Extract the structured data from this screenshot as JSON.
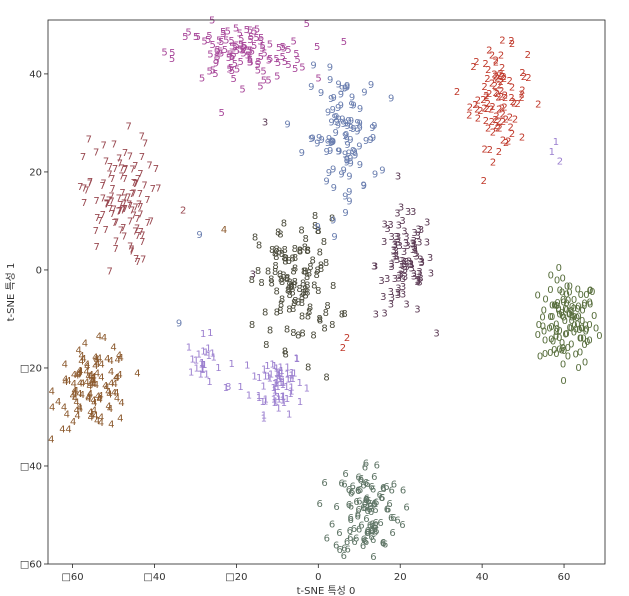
{
  "chart_data": {
    "type": "scatter",
    "title": "",
    "xlabel": "t-SNE 특성 0",
    "ylabel": "t-SNE 특성 1",
    "xlim": [
      -66,
      70
    ],
    "ylim": [
      -60,
      51
    ],
    "xticks": [
      {
        "v": -60,
        "label": "□60"
      },
      {
        "v": -40,
        "label": "□40"
      },
      {
        "v": -20,
        "label": "□20"
      },
      {
        "v": 0,
        "label": "0"
      },
      {
        "v": 20,
        "label": "20"
      },
      {
        "v": 40,
        "label": "40"
      },
      {
        "v": 60,
        "label": "60"
      }
    ],
    "yticks": [
      {
        "v": 40,
        "label": "40"
      },
      {
        "v": 20,
        "label": "20"
      },
      {
        "v": 0,
        "label": "0"
      },
      {
        "v": -20,
        "label": "□20"
      },
      {
        "v": -40,
        "label": "□40"
      },
      {
        "v": -60,
        "label": "□60"
      }
    ],
    "grid": false,
    "legend": "none",
    "series": [
      {
        "digit": "0",
        "color": "#596f3e",
        "cx": 61,
        "cy": -11,
        "sx": 3.6,
        "sy": 4.5,
        "n": 120
      },
      {
        "digit": "1",
        "color": "#9b7fcf",
        "cx": -10,
        "cy": -23,
        "sx": 3.2,
        "sy": 3.2,
        "n": 70
      },
      {
        "digit": "1",
        "color": "#9b7fcf",
        "cx": -28,
        "cy": -19,
        "sx": 2.0,
        "sy": 2.6,
        "n": 25
      },
      {
        "digit": "2",
        "color": "#c0392b",
        "cx": 44,
        "cy": 35,
        "sx": 3.5,
        "sy": 5.0,
        "n": 95
      },
      {
        "digit": "3",
        "color": "#5b3a54",
        "cx": 21,
        "cy": 1,
        "sx": 3.5,
        "sy": 5.5,
        "n": 95
      },
      {
        "digit": "4",
        "color": "#8c5a2e",
        "cx": -55,
        "cy": -24,
        "sx": 4.5,
        "sy": 4.2,
        "n": 110
      },
      {
        "digit": "5",
        "color": "#a8489a",
        "cx": -19,
        "cy": 44,
        "sx": 8.0,
        "sy": 3.0,
        "n": 110
      },
      {
        "digit": "6",
        "color": "#5f7566",
        "cx": 12,
        "cy": -49,
        "sx": 4.0,
        "sy": 5.0,
        "n": 110
      },
      {
        "digit": "7",
        "color": "#9a4a52",
        "cx": -49,
        "cy": 14,
        "sx": 4.2,
        "sy": 6.5,
        "n": 110
      },
      {
        "digit": "8",
        "color": "#4a4a3a",
        "cx": -5,
        "cy": -3,
        "sx": 5.0,
        "sy": 6.5,
        "n": 115
      },
      {
        "digit": "9",
        "color": "#6b7fb0",
        "cx": 6,
        "cy": 27,
        "sx": 4.5,
        "sy": 6.5,
        "n": 100
      }
    ],
    "stragglers": [
      {
        "digit": "3",
        "color": "#5b3a54",
        "x": -13,
        "y": 30
      },
      {
        "digit": "9",
        "color": "#6b7fb0",
        "x": -34,
        "y": -11
      },
      {
        "digit": "9",
        "color": "#6b7fb0",
        "x": -29,
        "y": 7
      },
      {
        "digit": "2",
        "color": "#c0392b",
        "x": 6,
        "y": -16
      },
      {
        "digit": "2",
        "color": "#c0392b",
        "x": 7,
        "y": -14
      },
      {
        "digit": "8",
        "color": "#4a4a3a",
        "x": 2,
        "y": -22
      },
      {
        "digit": "3",
        "color": "#5b3a54",
        "x": -16,
        "y": -1
      },
      {
        "digit": "4",
        "color": "#8c5a2e",
        "x": -23,
        "y": 8
      },
      {
        "digit": "2",
        "color": "#9a4a52",
        "x": -33,
        "y": 12
      },
      {
        "digit": "9",
        "color": "#a8489a",
        "x": -25,
        "y": 42
      },
      {
        "digit": "2",
        "color": "#9b7fcf",
        "x": 59,
        "y": 22
      },
      {
        "digit": "1",
        "color": "#9b7fcf",
        "x": 57,
        "y": 24
      },
      {
        "digit": "1",
        "color": "#9b7fcf",
        "x": 58,
        "y": 26
      },
      {
        "digit": "8",
        "color": "#9b7fcf",
        "x": -22,
        "y": -24
      },
      {
        "digit": "1",
        "color": "#9b7fcf",
        "x": -19,
        "y": -24
      }
    ]
  }
}
